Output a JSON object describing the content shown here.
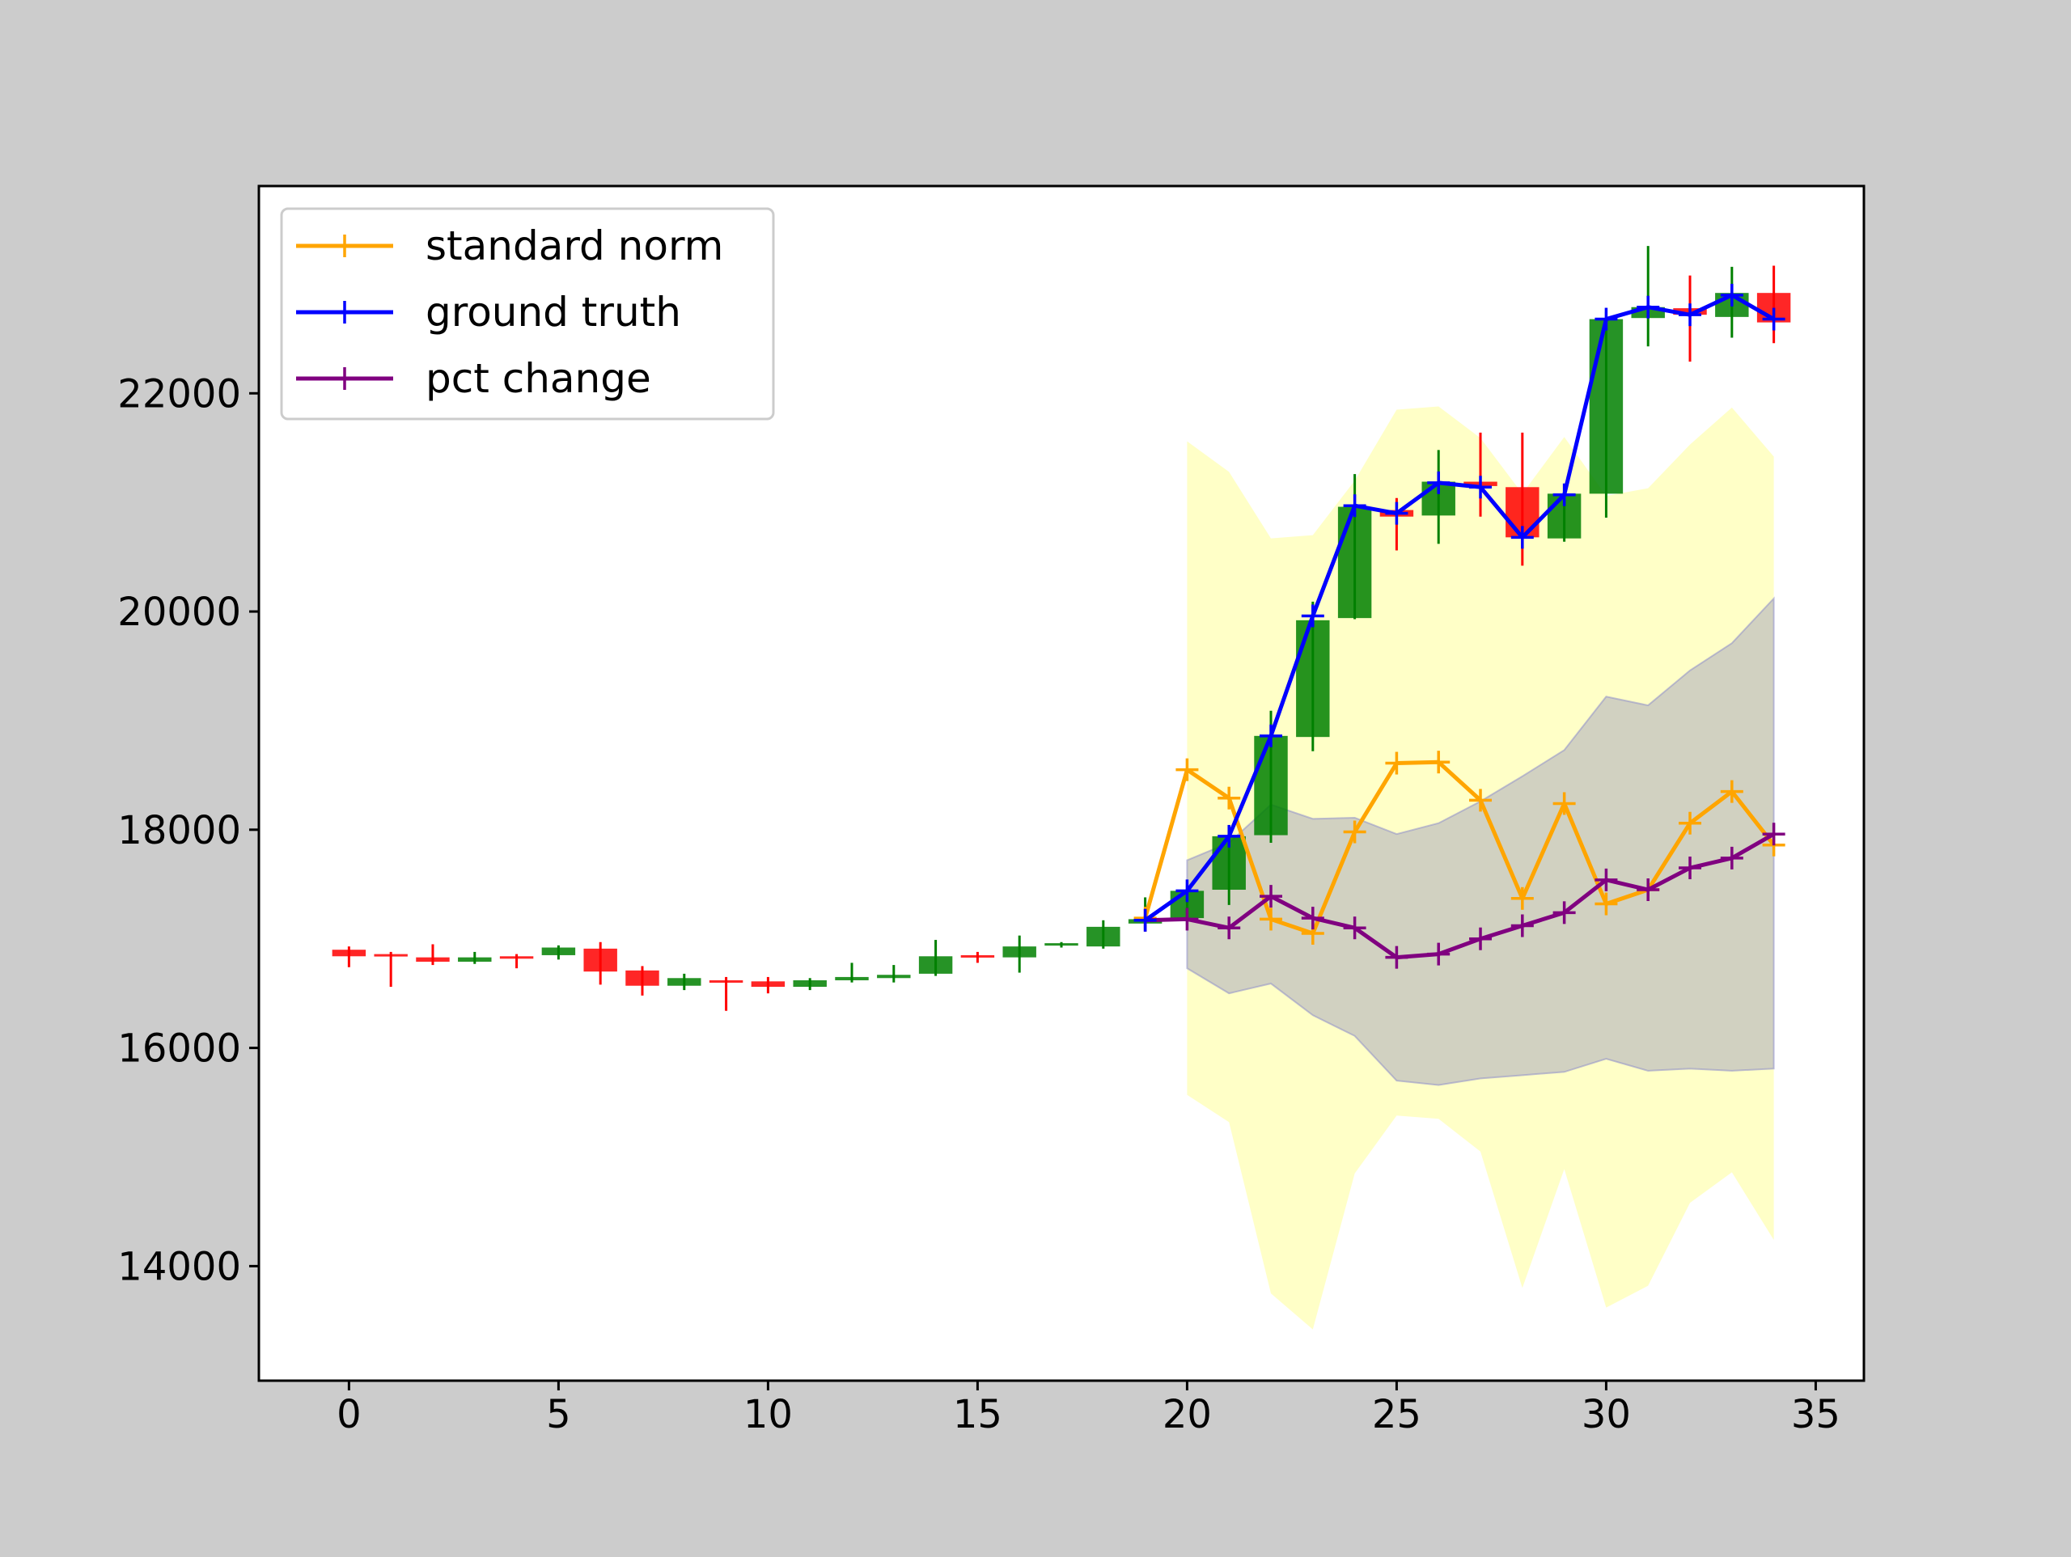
{
  "chart_data": {
    "type": "line",
    "title": "",
    "xlabel": "",
    "ylabel": "",
    "xlim": [
      -2.15,
      36.15
    ],
    "ylim": [
      12950,
      23900
    ],
    "x_ticks": [
      0,
      5,
      10,
      15,
      20,
      25,
      30,
      35
    ],
    "y_ticks": [
      14000,
      16000,
      18000,
      20000,
      22000
    ],
    "grid": false,
    "legend": {
      "placement": "top-left",
      "entries": [
        "standard norm",
        "ground truth",
        "pct change"
      ]
    },
    "colors": {
      "up": "#008000",
      "down": "#ff0000",
      "standard_norm": "#ffa500",
      "ground_truth": "#0000ff",
      "pct_change": "#800080",
      "band_outer": "#ffff99",
      "band_inner": "#9999bb",
      "figure_bg": "#cccccc",
      "axes_bg": "#ffffff"
    },
    "candles": [
      {
        "x": 0,
        "open": 16900,
        "close": 16840,
        "high": 16930,
        "low": 16740
      },
      {
        "x": 1,
        "open": 16860,
        "close": 16840,
        "high": 16880,
        "low": 16560
      },
      {
        "x": 2,
        "open": 16830,
        "close": 16790,
        "high": 16950,
        "low": 16760
      },
      {
        "x": 3,
        "open": 16790,
        "close": 16830,
        "high": 16880,
        "low": 16770
      },
      {
        "x": 4,
        "open": 16840,
        "close": 16830,
        "high": 16860,
        "low": 16730
      },
      {
        "x": 5,
        "open": 16850,
        "close": 16920,
        "high": 16940,
        "low": 16810
      },
      {
        "x": 6,
        "open": 16910,
        "close": 16700,
        "high": 16970,
        "low": 16580
      },
      {
        "x": 7,
        "open": 16710,
        "close": 16570,
        "high": 16750,
        "low": 16480
      },
      {
        "x": 8,
        "open": 16570,
        "close": 16640,
        "high": 16680,
        "low": 16530
      },
      {
        "x": 9,
        "open": 16620,
        "close": 16610,
        "high": 16650,
        "low": 16340
      },
      {
        "x": 10,
        "open": 16610,
        "close": 16560,
        "high": 16650,
        "low": 16500
      },
      {
        "x": 11,
        "open": 16560,
        "close": 16620,
        "high": 16640,
        "low": 16530
      },
      {
        "x": 12,
        "open": 16620,
        "close": 16650,
        "high": 16780,
        "low": 16600
      },
      {
        "x": 13,
        "open": 16640,
        "close": 16670,
        "high": 16760,
        "low": 16600
      },
      {
        "x": 14,
        "open": 16680,
        "close": 16840,
        "high": 16990,
        "low": 16660
      },
      {
        "x": 15,
        "open": 16850,
        "close": 16840,
        "high": 16880,
        "low": 16780
      },
      {
        "x": 16,
        "open": 16830,
        "close": 16930,
        "high": 17030,
        "low": 16690
      },
      {
        "x": 17,
        "open": 16940,
        "close": 16960,
        "high": 16970,
        "low": 16920
      },
      {
        "x": 18,
        "open": 16930,
        "close": 17110,
        "high": 17170,
        "low": 16910
      },
      {
        "x": 19,
        "open": 17140,
        "close": 17180,
        "high": 17380,
        "low": 17100
      },
      {
        "x": 20,
        "open": 17190,
        "close": 17440,
        "high": 17490,
        "low": 17130
      },
      {
        "x": 21,
        "open": 17450,
        "close": 17940,
        "high": 17990,
        "low": 17310
      },
      {
        "x": 22,
        "open": 17950,
        "close": 18860,
        "high": 19090,
        "low": 17880
      },
      {
        "x": 23,
        "open": 18850,
        "close": 19920,
        "high": 20090,
        "low": 18720
      },
      {
        "x": 24,
        "open": 19940,
        "close": 20960,
        "high": 21260,
        "low": 19930
      },
      {
        "x": 25,
        "open": 20930,
        "close": 20870,
        "high": 21040,
        "low": 20560
      },
      {
        "x": 26,
        "open": 20880,
        "close": 21190,
        "high": 21480,
        "low": 20620
      },
      {
        "x": 27,
        "open": 21190,
        "close": 21150,
        "high": 21640,
        "low": 20870
      },
      {
        "x": 28,
        "open": 21140,
        "close": 20680,
        "high": 21640,
        "low": 20420
      },
      {
        "x": 29,
        "open": 20670,
        "close": 21080,
        "high": 21100,
        "low": 20640
      },
      {
        "x": 30,
        "open": 21080,
        "close": 22680,
        "high": 22750,
        "low": 20860
      },
      {
        "x": 31,
        "open": 22690,
        "close": 22790,
        "high": 23350,
        "low": 22430
      },
      {
        "x": 32,
        "open": 22780,
        "close": 22720,
        "high": 23080,
        "low": 22290
      },
      {
        "x": 33,
        "open": 22700,
        "close": 22920,
        "high": 23160,
        "low": 22510
      },
      {
        "x": 34,
        "open": 22920,
        "close": 22650,
        "high": 23170,
        "low": 22460
      }
    ],
    "series": [
      {
        "name": "standard norm",
        "x": [
          19,
          20,
          21,
          22,
          23,
          24,
          25,
          26,
          27,
          28,
          29,
          30,
          31,
          32,
          33,
          34
        ],
        "values": [
          17190,
          18550,
          18290,
          17180,
          17050,
          17980,
          18610,
          18620,
          18270,
          17370,
          18240,
          17320,
          17450,
          18060,
          18350,
          17860
        ]
      },
      {
        "name": "ground truth",
        "x": [
          19,
          20,
          21,
          22,
          23,
          24,
          25,
          26,
          27,
          28,
          29,
          30,
          31,
          32,
          33,
          34
        ],
        "values": [
          17170,
          17440,
          17940,
          18860,
          19960,
          20970,
          20900,
          21180,
          21140,
          20680,
          21070,
          22680,
          22790,
          22720,
          22900,
          22680
        ]
      },
      {
        "name": "pct change",
        "x": [
          19,
          20,
          21,
          22,
          23,
          24,
          25,
          26,
          27,
          28,
          29,
          30,
          31,
          32,
          33,
          34
        ],
        "values": [
          17170,
          17180,
          17100,
          17390,
          17190,
          17100,
          16830,
          16860,
          17000,
          17120,
          17240,
          17540,
          17450,
          17650,
          17740,
          17960
        ]
      }
    ],
    "bands": [
      {
        "x": [
          20,
          21,
          22,
          23,
          24,
          25,
          26,
          27,
          28,
          29,
          30,
          31,
          32,
          33,
          34
        ],
        "upper": [
          21560,
          21280,
          20670,
          20700,
          21200,
          21850,
          21880,
          21590,
          21080,
          21600,
          21060,
          21130,
          21530,
          21870,
          21420
        ],
        "lower": [
          15570,
          15320,
          13750,
          13420,
          14850,
          15380,
          15350,
          15050,
          13800,
          14890,
          13620,
          13820,
          14580,
          14860,
          14240
        ]
      },
      {
        "x": [
          20,
          21,
          22,
          23,
          24,
          25,
          26,
          27,
          28,
          29,
          30,
          31,
          32,
          33,
          34
        ],
        "upper": [
          17720,
          17880,
          18230,
          18100,
          18110,
          17960,
          18060,
          18260,
          18490,
          18730,
          19220,
          19140,
          19460,
          19710,
          20120
        ],
        "lower": [
          16730,
          16500,
          16590,
          16300,
          16110,
          15700,
          15660,
          15720,
          15750,
          15780,
          15900,
          15790,
          15810,
          15790,
          15810
        ]
      }
    ]
  }
}
